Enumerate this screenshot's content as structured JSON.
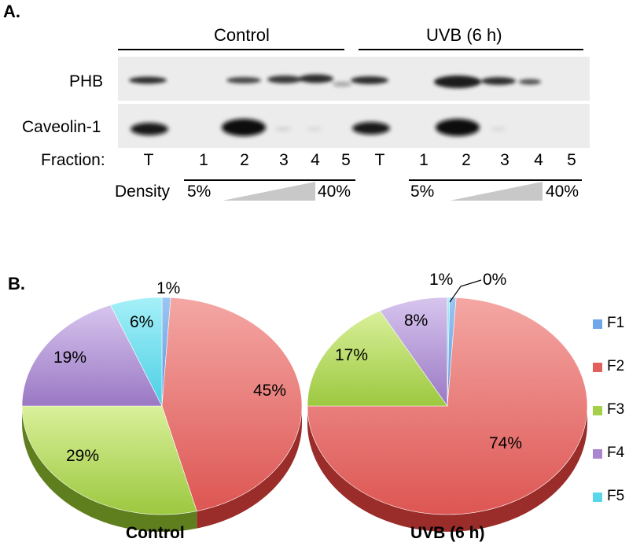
{
  "panel_a": {
    "label": "A.",
    "groups": [
      "Control",
      "UVB (6 h)"
    ],
    "rows": [
      "PHB",
      "Caveolin-1"
    ],
    "fraction_label": "Fraction:",
    "lanes": [
      "T",
      "1",
      "2",
      "3",
      "4",
      "5",
      "T",
      "1",
      "2",
      "3",
      "4",
      "5"
    ],
    "density_label": "Density",
    "density_low": "5%",
    "density_high": "40%"
  },
  "panel_b": {
    "label": "B."
  },
  "chart_data": [
    {
      "type": "pie",
      "title": "Control",
      "categories": [
        "F1",
        "F2",
        "F3",
        "F4",
        "F5"
      ],
      "values": [
        1,
        45,
        29,
        19,
        6
      ],
      "labels": [
        "1%",
        "45%",
        "29%",
        "19%",
        "6%"
      ]
    },
    {
      "type": "pie",
      "title": "UVB (6 h)",
      "categories": [
        "F1",
        "F2",
        "F3",
        "F4",
        "F5"
      ],
      "values": [
        1,
        74,
        17,
        8,
        0
      ],
      "labels": [
        "1%",
        "74%",
        "17%",
        "8%",
        "0%"
      ]
    }
  ],
  "legend": {
    "items": [
      "F1",
      "F2",
      "F3",
      "F4",
      "F5"
    ],
    "colors": [
      "#6fa8e8",
      "#e0605e",
      "#a4d04a",
      "#a986cf",
      "#5ad6ea"
    ],
    "placement": "right"
  }
}
